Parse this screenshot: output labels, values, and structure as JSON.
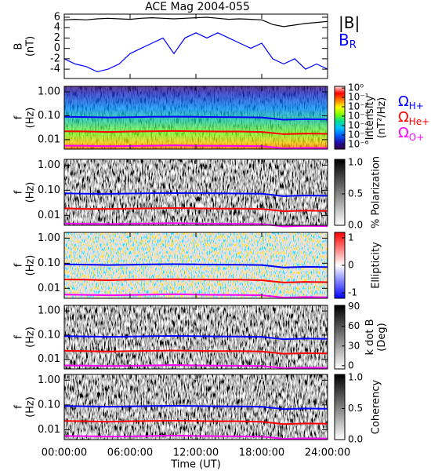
{
  "chart_data": [
    {
      "type": "line",
      "title": "ACE Mag 2004-055",
      "y_label": [
        "B",
        "(nT)"
      ],
      "xlim": [
        0,
        24
      ],
      "ylim": [
        -5.8,
        6.6
      ],
      "yticks": [
        -4,
        -2,
        0,
        2,
        4,
        6
      ],
      "x": [
        0,
        1,
        2,
        3,
        4,
        5,
        6,
        7,
        8,
        9,
        10,
        11,
        12,
        13,
        14,
        15,
        16,
        17,
        18,
        19,
        20,
        21,
        22,
        23,
        24
      ],
      "series": [
        {
          "name": "|B|",
          "color": "#000000",
          "values": [
            5.5,
            5.6,
            5.5,
            5.7,
            5.8,
            5.7,
            5.6,
            5.8,
            5.9,
            5.8,
            5.7,
            5.8,
            5.9,
            6.0,
            5.8,
            5.6,
            5.7,
            5.6,
            5.5,
            4.6,
            4.2,
            4.5,
            4.8,
            5.0,
            5.2
          ]
        },
        {
          "name": "B",
          "subscript": "R",
          "color": "#0000ff",
          "values": [
            -2,
            -3,
            -3.5,
            -4.5,
            -4,
            -3,
            -1,
            0,
            1,
            2,
            -1,
            2,
            3,
            2,
            3,
            2,
            1,
            0,
            1,
            -2,
            -3,
            -2,
            -4,
            -3,
            -4
          ]
        }
      ]
    },
    {
      "type": "spectrogram",
      "y_label": [
        "f",
        "(Hz)"
      ],
      "ylog": true,
      "xlim": [
        0,
        24
      ],
      "ylim": [
        0.004,
        1.7
      ],
      "yticks": [
        0.01,
        {
          "value": 0.1,
          "label": "0.10"
        },
        {
          "value": 1,
          "label": "1.00"
        }
      ],
      "x": [
        0,
        2,
        4,
        6,
        8,
        10,
        12,
        14,
        16,
        18,
        20,
        22,
        24
      ],
      "series": [
        {
          "name": "Ω",
          "subscript": "H+",
          "color": "#0000ff",
          "values": [
            0.09,
            0.088,
            0.085,
            0.087,
            0.09,
            0.092,
            0.09,
            0.088,
            0.087,
            0.085,
            0.068,
            0.072,
            0.07
          ]
        },
        {
          "name": "Ω",
          "subscript": "He+",
          "color": "#ff0000",
          "values": [
            0.0225,
            0.022,
            0.021,
            0.022,
            0.0225,
            0.023,
            0.0225,
            0.022,
            0.022,
            0.021,
            0.017,
            0.018,
            0.0175
          ]
        },
        {
          "name": "Ω",
          "subscript": "O+",
          "color": "#ff00ff",
          "values": [
            0.0056,
            0.0055,
            0.0053,
            0.0054,
            0.0056,
            0.0058,
            0.0056,
            0.0055,
            0.0054,
            0.0053,
            0.0043,
            0.0045,
            0.0044
          ]
        }
      ],
      "z_label": [
        "Intensity",
        "(nT²/Hz)"
      ],
      "zlog": true,
      "zlim": [
        3e-07,
        1.5
      ],
      "zticks": [
        {
          "value": 1,
          "label": "10⁰"
        },
        {
          "value": 0.1,
          "label": "10⁻¹"
        },
        {
          "value": 0.01,
          "label": "10⁻²"
        },
        {
          "value": 0.001,
          "label": "10⁻³"
        },
        {
          "value": 0.0001,
          "label": "10⁻⁴"
        },
        {
          "value": 1e-05,
          "label": "10⁻⁵"
        },
        {
          "value": 1e-06,
          "label": "10⁻⁶"
        }
      ],
      "colormap": [
        "#300040",
        "#2010b0",
        "#0060ff",
        "#00c0ff",
        "#00e090",
        "#80ff00",
        "#ffff00",
        "#ff8000",
        "#ff0000",
        "#ffe0e0"
      ]
    },
    {
      "type": "spectrogram",
      "y_label": [
        "f",
        "(Hz)"
      ],
      "ylog": true,
      "xlim": [
        0,
        24
      ],
      "ylim": [
        0.004,
        1.7
      ],
      "yticks": [
        0.01,
        {
          "value": 0.1,
          "label": "0.10"
        },
        {
          "value": 1,
          "label": "1.00"
        }
      ],
      "x": [
        0,
        2,
        4,
        6,
        8,
        10,
        12,
        14,
        16,
        18,
        20,
        22,
        24
      ],
      "series": [
        {
          "color": "#0000ff",
          "values": [
            0.075,
            0.073,
            0.072,
            0.074,
            0.076,
            0.077,
            0.076,
            0.075,
            0.074,
            0.073,
            0.058,
            0.062,
            0.06
          ]
        },
        {
          "color": "#ff0000",
          "values": [
            0.019,
            0.018,
            0.018,
            0.0185,
            0.019,
            0.0195,
            0.019,
            0.0185,
            0.0185,
            0.018,
            0.0145,
            0.0155,
            0.015
          ]
        },
        {
          "color": "#ff00ff",
          "values": [
            0.0047,
            0.0046,
            0.0045,
            0.0046,
            0.0047,
            0.0049,
            0.0047,
            0.0046,
            0.0046,
            0.0045,
            0.0036,
            0.0038,
            0.0037
          ]
        }
      ],
      "z_label": [
        "% Polarization"
      ],
      "zlim": [
        0,
        1.05
      ],
      "zticks": [
        {
          "value": 0,
          "label": "0.0"
        },
        {
          "value": 0.5,
          "label": "0.5"
        },
        {
          "value": 1,
          "label": "1.0"
        }
      ],
      "colormap": [
        "#ffffff",
        "#000000"
      ]
    },
    {
      "type": "spectrogram",
      "y_label": [
        "f",
        "(Hz)"
      ],
      "ylog": true,
      "xlim": [
        0,
        24
      ],
      "ylim": [
        0.004,
        1.7
      ],
      "yticks": [
        0.01,
        {
          "value": 0.1,
          "label": "0.10"
        },
        {
          "value": 1,
          "label": "1.00"
        }
      ],
      "x": [
        0,
        2,
        4,
        6,
        8,
        10,
        12,
        14,
        16,
        18,
        20,
        22,
        24
      ],
      "series": [
        {
          "color": "#0000ff",
          "values": [
            0.09,
            0.088,
            0.085,
            0.087,
            0.09,
            0.092,
            0.09,
            0.088,
            0.087,
            0.085,
            0.068,
            0.072,
            0.07
          ]
        },
        {
          "color": "#ff0000",
          "values": [
            0.0225,
            0.022,
            0.021,
            0.022,
            0.0225,
            0.023,
            0.0225,
            0.022,
            0.022,
            0.021,
            0.017,
            0.018,
            0.0175
          ]
        },
        {
          "color": "#ff00ff",
          "values": [
            0.0056,
            0.0055,
            0.0053,
            0.0054,
            0.0056,
            0.0058,
            0.0056,
            0.0055,
            0.0054,
            0.0053,
            0.0043,
            0.0045,
            0.0044
          ]
        }
      ],
      "z_label": [
        "Ellipticity"
      ],
      "zlim": [
        -1.2,
        1.2
      ],
      "zticks": [
        -1,
        0,
        1
      ],
      "colormap": [
        "#0000ff",
        "#ffffff",
        "#ff0000"
      ]
    },
    {
      "type": "spectrogram",
      "y_label": [
        "f",
        "(Hz)"
      ],
      "ylog": true,
      "xlim": [
        0,
        24
      ],
      "ylim": [
        0.004,
        1.7
      ],
      "yticks": [
        0.01,
        {
          "value": 0.1,
          "label": "0.10"
        },
        {
          "value": 1,
          "label": "1.00"
        }
      ],
      "x": [
        0,
        2,
        4,
        6,
        8,
        10,
        12,
        14,
        16,
        18,
        20,
        22,
        24
      ],
      "series": [
        {
          "color": "#0000ff",
          "values": [
            0.09,
            0.088,
            0.085,
            0.087,
            0.09,
            0.092,
            0.09,
            0.088,
            0.087,
            0.085,
            0.068,
            0.072,
            0.07
          ]
        },
        {
          "color": "#ff0000",
          "values": [
            0.0225,
            0.022,
            0.021,
            0.022,
            0.0225,
            0.023,
            0.0225,
            0.022,
            0.022,
            0.021,
            0.017,
            0.018,
            0.0175
          ]
        },
        {
          "color": "#ff00ff",
          "values": [
            0.0056,
            0.0055,
            0.0053,
            0.0054,
            0.0056,
            0.0058,
            0.0056,
            0.0055,
            0.0054,
            0.0053,
            0.0043,
            0.0045,
            0.0044
          ]
        }
      ],
      "z_label": [
        "k dot B",
        "(Deg)"
      ],
      "zlim": [
        -5,
        92
      ],
      "zticks": [
        0,
        30,
        60,
        90
      ],
      "colormap": [
        "#ffffff",
        "#000000"
      ]
    },
    {
      "type": "spectrogram",
      "y_label": [
        "f",
        "(Hz)"
      ],
      "ylog": true,
      "xlim": [
        0,
        24
      ],
      "ylim": [
        0.004,
        1.7
      ],
      "yticks": [
        0.01,
        {
          "value": 0.1,
          "label": "0.10"
        },
        {
          "value": 1,
          "label": "1.00"
        }
      ],
      "x": [
        0,
        2,
        4,
        6,
        8,
        10,
        12,
        14,
        16,
        18,
        20,
        22,
        24
      ],
      "series": [
        {
          "color": "#0000ff",
          "values": [
            0.09,
            0.088,
            0.085,
            0.087,
            0.09,
            0.092,
            0.09,
            0.088,
            0.087,
            0.085,
            0.068,
            0.072,
            0.07
          ]
        },
        {
          "color": "#ff0000",
          "values": [
            0.0225,
            0.022,
            0.021,
            0.022,
            0.0225,
            0.023,
            0.0225,
            0.022,
            0.022,
            0.021,
            0.017,
            0.018,
            0.0175
          ]
        },
        {
          "color": "#ff00ff",
          "values": [
            0.0056,
            0.0055,
            0.0053,
            0.0054,
            0.0056,
            0.0058,
            0.0056,
            0.0055,
            0.0054,
            0.0053,
            0.0043,
            0.0045,
            0.0044
          ]
        }
      ],
      "z_label": [
        "Coherency"
      ],
      "zlim": [
        0,
        1.05
      ],
      "zticks": [
        {
          "value": 0,
          "label": "0.0"
        },
        {
          "value": 0.5,
          "label": "0.5"
        },
        {
          "value": 1,
          "label": "1.0"
        }
      ],
      "colormap": [
        "#ffffff",
        "#000000"
      ],
      "x_label": "Time (UT)",
      "xticks": [
        {
          "value": 0,
          "label": "00:00:00"
        },
        {
          "value": 6,
          "label": "06:00:00"
        },
        {
          "value": 12,
          "label": "12:00:00"
        },
        {
          "value": 18,
          "label": "18:00:00"
        },
        {
          "value": 24,
          "label": "24:00:00"
        }
      ]
    }
  ]
}
